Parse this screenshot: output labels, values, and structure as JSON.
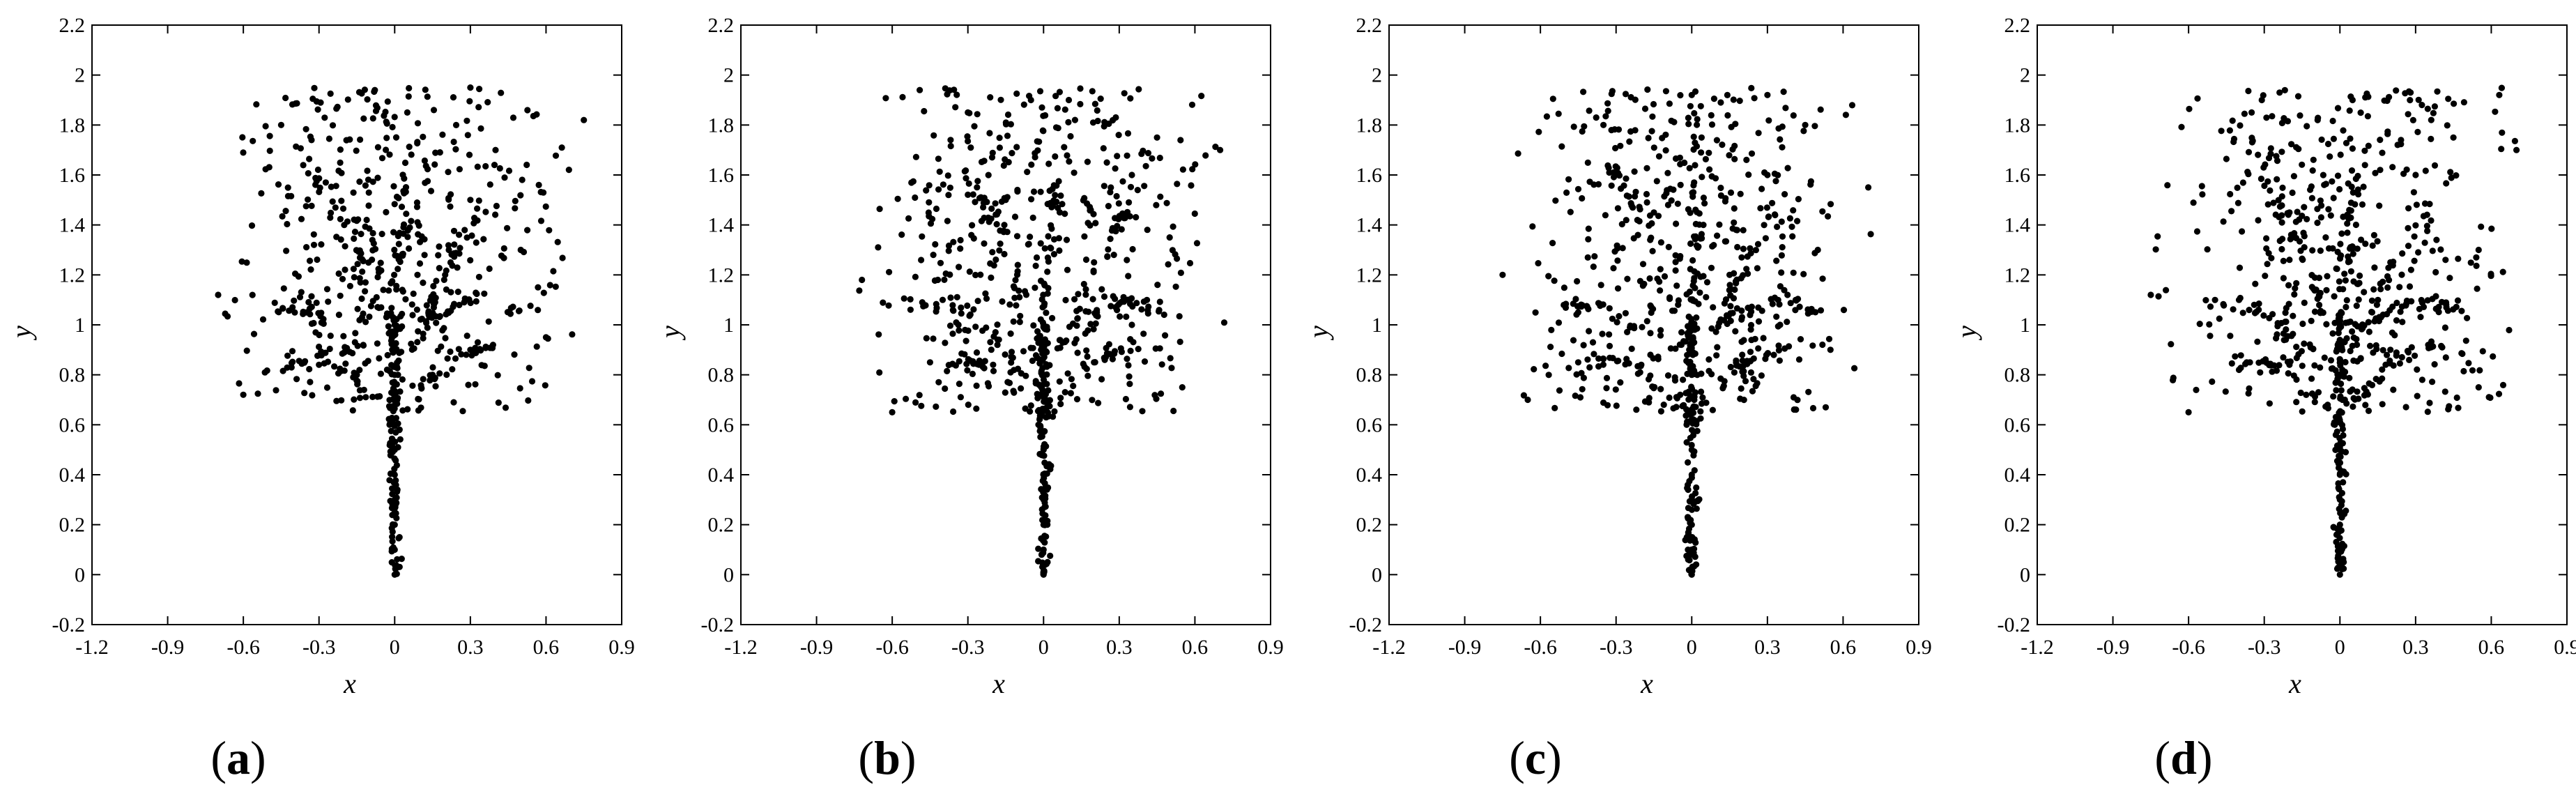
{
  "chart_data": [
    {
      "panel": "(a)",
      "panel_letter": "a",
      "type": "scatter",
      "xlabel": "x",
      "ylabel": "y",
      "xlim": [
        -1.2,
        0.9
      ],
      "ylim": [
        -0.2,
        2.2
      ],
      "xticks": [
        "-1.2",
        "-0.9",
        "-0.6",
        "-0.3",
        "0",
        "0.3",
        "0.6",
        "0.9"
      ],
      "yticks": [
        "-0.2",
        "0",
        "0.2",
        "0.4",
        "0.6",
        "0.8",
        "1",
        "1.2",
        "1.4",
        "1.6",
        "1.8",
        "2",
        "2.2"
      ],
      "grid": false,
      "seed": 11,
      "points": [
        [
          0.0,
          0.0
        ],
        [
          0.0,
          0.1
        ],
        [
          0.0,
          0.2
        ],
        [
          0.0,
          0.3
        ],
        [
          0.0,
          0.4
        ],
        [
          0.0,
          0.5
        ],
        [
          -0.02,
          0.6
        ],
        [
          0.01,
          0.7
        ],
        [
          0.0,
          0.8
        ],
        [
          -0.01,
          0.9
        ],
        [
          0.0,
          1.0
        ],
        [
          -0.15,
          0.8
        ],
        [
          -0.3,
          0.84
        ],
        [
          0.15,
          0.8
        ],
        [
          0.3,
          0.9
        ],
        [
          -0.35,
          1.05
        ],
        [
          0.2,
          1.2
        ],
        [
          -0.2,
          1.4
        ],
        [
          0.3,
          1.5
        ],
        [
          0.4,
          1.7
        ],
        [
          -0.45,
          1.8
        ],
        [
          0.05,
          1.85
        ],
        [
          0.3,
          1.95
        ],
        [
          0.75,
          1.82
        ],
        [
          -0.7,
          1.12
        ],
        [
          -0.6,
          0.72
        ],
        [
          0.6,
          0.95
        ],
        [
          0.5,
          1.3
        ]
      ]
    },
    {
      "panel": "(b)",
      "panel_letter": "b",
      "type": "scatter",
      "xlabel": "x",
      "ylabel": "y",
      "xlim": [
        -1.2,
        0.9
      ],
      "ylim": [
        -0.2,
        2.2
      ],
      "xticks": [
        "-1.2",
        "-0.9",
        "-0.6",
        "-0.3",
        "0",
        "0.3",
        "0.6",
        "0.9"
      ],
      "yticks": [
        "-0.2",
        "0",
        "0.2",
        "0.4",
        "0.6",
        "0.8",
        "1",
        "1.2",
        "1.4",
        "1.6",
        "1.8",
        "2",
        "2.2"
      ],
      "grid": false,
      "seed": 23,
      "points": [
        [
          0.0,
          0.0
        ],
        [
          0.0,
          0.1
        ],
        [
          0.0,
          0.2
        ],
        [
          0.0,
          0.3
        ],
        [
          0.0,
          0.4
        ],
        [
          0.0,
          0.5
        ],
        [
          -0.02,
          0.6
        ],
        [
          0.01,
          0.7
        ],
        [
          0.0,
          0.8
        ],
        [
          -0.01,
          0.9
        ],
        [
          0.0,
          1.0
        ],
        [
          -0.2,
          0.84
        ],
        [
          -0.45,
          0.85
        ],
        [
          0.2,
          0.85
        ],
        [
          0.35,
          1.0
        ],
        [
          -0.4,
          1.1
        ],
        [
          0.2,
          1.25
        ],
        [
          -0.15,
          1.5
        ],
        [
          0.35,
          1.6
        ],
        [
          0.45,
          1.75
        ],
        [
          -0.3,
          1.85
        ],
        [
          -0.05,
          1.9
        ],
        [
          0.1,
          1.9
        ],
        [
          0.7,
          1.7
        ],
        [
          -0.72,
          1.18
        ],
        [
          -0.6,
          0.65
        ],
        [
          0.55,
          0.75
        ],
        [
          0.5,
          1.35
        ]
      ]
    },
    {
      "panel": "(c)",
      "panel_letter": "c",
      "type": "scatter",
      "xlabel": "x",
      "ylabel": "y",
      "xlim": [
        -1.2,
        0.9
      ],
      "ylim": [
        -0.2,
        2.2
      ],
      "xticks": [
        "-1.2",
        "-0.9",
        "-0.6",
        "-0.3",
        "0",
        "0.3",
        "0.6",
        "0.9"
      ],
      "yticks": [
        "-0.2",
        "0",
        "0.2",
        "0.4",
        "0.6",
        "0.8",
        "1",
        "1.2",
        "1.4",
        "1.6",
        "1.8",
        "2",
        "2.2"
      ],
      "grid": false,
      "seed": 37,
      "points": [
        [
          0.0,
          0.0
        ],
        [
          0.0,
          0.1
        ],
        [
          0.0,
          0.2
        ],
        [
          0.0,
          0.3
        ],
        [
          0.0,
          0.4
        ],
        [
          0.0,
          0.5
        ],
        [
          -0.02,
          0.6
        ],
        [
          0.01,
          0.7
        ],
        [
          0.0,
          0.8
        ],
        [
          -0.01,
          0.9
        ],
        [
          0.0,
          1.0
        ],
        [
          -0.2,
          0.84
        ],
        [
          -0.45,
          0.85
        ],
        [
          0.2,
          0.88
        ],
        [
          0.35,
          1.0
        ],
        [
          -0.45,
          1.05
        ],
        [
          0.15,
          1.2
        ],
        [
          -0.15,
          1.45
        ],
        [
          0.3,
          1.6
        ],
        [
          0.45,
          1.8
        ],
        [
          -0.35,
          1.8
        ],
        [
          0.0,
          1.92
        ],
        [
          0.3,
          1.92
        ],
        [
          0.7,
          1.55
        ],
        [
          -0.75,
          1.2
        ],
        [
          -0.65,
          0.7
        ],
        [
          0.55,
          0.9
        ],
        [
          0.5,
          1.3
        ]
      ]
    },
    {
      "panel": "(d)",
      "panel_letter": "d",
      "type": "scatter",
      "xlabel": "x",
      "ylabel": "y",
      "xlim": [
        -1.2,
        0.9
      ],
      "ylim": [
        -0.2,
        2.2
      ],
      "xticks": [
        "-1.2",
        "-0.9",
        "-0.6",
        "-0.3",
        "0",
        "0.3",
        "0.6",
        "0.9"
      ],
      "yticks": [
        "-0.2",
        "0",
        "0.2",
        "0.4",
        "0.6",
        "0.8",
        "1",
        "1.2",
        "1.4",
        "1.6",
        "1.8",
        "2",
        "2.2"
      ],
      "grid": false,
      "seed": 53,
      "points": [
        [
          0.0,
          0.0
        ],
        [
          0.0,
          0.1
        ],
        [
          0.0,
          0.2
        ],
        [
          0.0,
          0.3
        ],
        [
          0.0,
          0.4
        ],
        [
          0.0,
          0.5
        ],
        [
          -0.02,
          0.6
        ],
        [
          0.01,
          0.7
        ],
        [
          0.0,
          0.8
        ],
        [
          -0.01,
          0.9
        ],
        [
          0.0,
          1.0
        ],
        [
          -0.2,
          0.84
        ],
        [
          -0.4,
          0.82
        ],
        [
          0.2,
          0.9
        ],
        [
          0.35,
          0.92
        ],
        [
          -0.4,
          1.1
        ],
        [
          0.2,
          1.25
        ],
        [
          -0.2,
          1.45
        ],
        [
          0.3,
          1.6
        ],
        [
          0.45,
          1.75
        ],
        [
          -0.35,
          1.85
        ],
        [
          0.05,
          1.9
        ],
        [
          0.28,
          1.93
        ],
        [
          0.7,
          1.7
        ],
        [
          -0.75,
          1.12
        ],
        [
          -0.6,
          0.65
        ],
        [
          0.55,
          0.75
        ],
        [
          0.55,
          1.3
        ]
      ]
    }
  ]
}
